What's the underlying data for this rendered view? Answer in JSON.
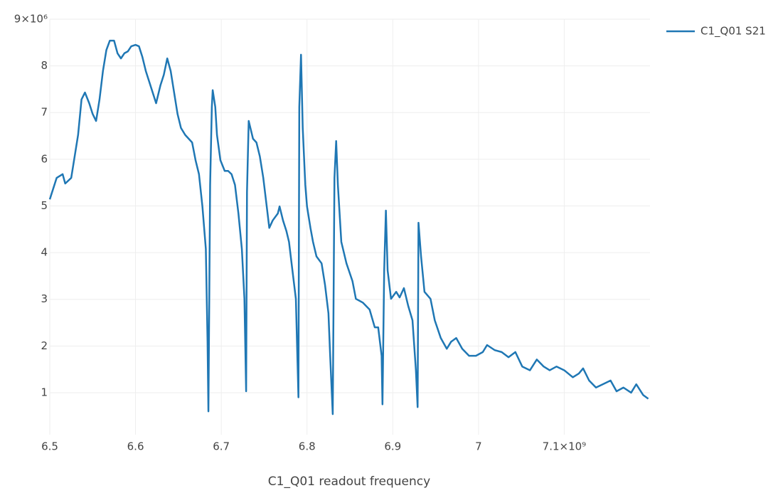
{
  "chart_data": {
    "type": "line",
    "x_label": "C1_Q01 readout frequency",
    "x": [
      6500000000.0,
      6504000000.0,
      6508000000.0,
      6515000000.0,
      6518000000.0,
      6525000000.0,
      6527000000.0,
      6533000000.0,
      6537000000.0,
      6541000000.0,
      6546000000.0,
      6550000000.0,
      6554000000.0,
      6558000000.0,
      6562000000.0,
      6566000000.0,
      6570000000.0,
      6575000000.0,
      6579000000.0,
      6583000000.0,
      6587000000.0,
      6591000000.0,
      6595000000.0,
      6600000000.0,
      6604000000.0,
      6608000000.0,
      6612000000.0,
      6616000000.0,
      6620000000.0,
      6624000000.0,
      6629000000.0,
      6633000000.0,
      6637000000.0,
      6641000000.0,
      6645000000.0,
      6649000000.0,
      6653000000.0,
      6658000000.0,
      6662000000.0,
      6666000000.0,
      6670000000.0,
      6674000000.0,
      6678000000.0,
      6682000000.0,
      6684000000.0,
      6685000000.0,
      6687000000.0,
      6689000000.0,
      6690000000.0,
      6693000000.0,
      6695000000.0,
      6699000000.0,
      6704000000.0,
      6708000000.0,
      6712000000.0,
      6716000000.0,
      6720000000.0,
      6724000000.0,
      6727000000.0,
      6729000000.0,
      6730000000.0,
      6732000000.0,
      6737000000.0,
      6741000000.0,
      6745000000.0,
      6749000000.0,
      6753000000.0,
      6756000000.0,
      6760000000.0,
      6766000000.0,
      6768000000.0,
      6772000000.0,
      6776000000.0,
      6779000000.0,
      6782000000.0,
      6787000000.0,
      6790000000.0,
      6791000000.0,
      6793000000.0,
      6795000000.0,
      6798000000.0,
      6800000000.0,
      6804000000.0,
      6807000000.0,
      6811000000.0,
      6817000000.0,
      6821000000.0,
      6825000000.0,
      6827000000.0,
      6830000000.0,
      6832000000.0,
      6834000000.0,
      6836000000.0,
      6840000000.0,
      6846000000.0,
      6853000000.0,
      6857000000.0,
      6865000000.0,
      6873000000.0,
      6879000000.0,
      6883000000.0,
      6887000000.0,
      6888000000.0,
      6890000000.0,
      6892000000.0,
      6894000000.0,
      6898000000.0,
      6904000000.0,
      6908000000.0,
      6913000000.0,
      6918000000.0,
      6923000000.0,
      6927000000.0,
      6929000000.0,
      6930000000.0,
      6933000000.0,
      6937000000.0,
      6944000000.0,
      6949000000.0,
      6956000000.0,
      6963000000.0,
      6968000000.0,
      6974000000.0,
      6981000000.0,
      6989000000.0,
      6997000000.0,
      7005000000.0,
      7010000000.0,
      7019000000.0,
      7027000000.0,
      7035000000.0,
      7043000000.0,
      7051000000.0,
      7060000000.0,
      7068000000.0,
      7076000000.0,
      7083000000.0,
      7091000000.0,
      7100000000.0,
      7110000000.0,
      7117000000.0,
      7122000000.0,
      7129000000.0,
      7137000000.0,
      7145000000.0,
      7154000000.0,
      7161000000.0,
      7169000000.0,
      7178000000.0,
      7184000000.0,
      7192000000.0,
      7198000000.0
    ],
    "series": [
      {
        "name": "C1_Q01 S21",
        "color": "#1f77b4",
        "values": [
          5140000.0,
          5370000.0,
          5600000.0,
          5680000.0,
          5480000.0,
          5600000.0,
          5830000.0,
          6520000.0,
          7280000.0,
          7430000.0,
          7200000.0,
          6970000.0,
          6820000.0,
          7280000.0,
          7890000.0,
          8340000.0,
          8540000.0,
          8540000.0,
          8270000.0,
          8160000.0,
          8270000.0,
          8310000.0,
          8420000.0,
          8450000.0,
          8420000.0,
          8190000.0,
          7890000.0,
          7660000.0,
          7430000.0,
          7200000.0,
          7580000.0,
          7810000.0,
          8160000.0,
          7890000.0,
          7430000.0,
          6970000.0,
          6670000.0,
          6520000.0,
          6440000.0,
          6360000.0,
          5980000.0,
          5680000.0,
          4990000.0,
          4080000.0,
          2090000.0,
          600000.0,
          5450000.0,
          7120000.0,
          7480000.0,
          7120000.0,
          6520000.0,
          5980000.0,
          5750000.0,
          5750000.0,
          5680000.0,
          5450000.0,
          4840000.0,
          4080000.0,
          3010000.0,
          1030000.0,
          5300000.0,
          6820000.0,
          6440000.0,
          6360000.0,
          6060000.0,
          5600000.0,
          4990000.0,
          4530000.0,
          4690000.0,
          4840000.0,
          4990000.0,
          4690000.0,
          4460000.0,
          4230000.0,
          3770000.0,
          3010000.0,
          900000.0,
          7120000.0,
          8240000.0,
          6670000.0,
          5450000.0,
          4990000.0,
          4530000.0,
          4230000.0,
          3920000.0,
          3770000.0,
          3310000.0,
          2700000.0,
          1790000.0,
          540000.0,
          5600000.0,
          6390000.0,
          5450000.0,
          4230000.0,
          3770000.0,
          3390000.0,
          3010000.0,
          2930000.0,
          2780000.0,
          2400000.0,
          2400000.0,
          1790000.0,
          750000.0,
          3620000.0,
          4900000.0,
          3620000.0,
          3010000.0,
          3160000.0,
          3040000.0,
          3240000.0,
          2860000.0,
          2550000.0,
          1480000.0,
          690000.0,
          4640000.0,
          3920000.0,
          3160000.0,
          3010000.0,
          2550000.0,
          2170000.0,
          1940000.0,
          2090000.0,
          2170000.0,
          1940000.0,
          1790000.0,
          1790000.0,
          1870000.0,
          2020000.0,
          1910000.0,
          1870000.0,
          1760000.0,
          1870000.0,
          1560000.0,
          1480000.0,
          1710000.0,
          1560000.0,
          1480000.0,
          1560000.0,
          1480000.0,
          1330000.0,
          1410000.0,
          1520000.0,
          1260000.0,
          1110000.0,
          1180000.0,
          1260000.0,
          1030000.0,
          1110000.0,
          1000000.0,
          1180000.0,
          950000.0,
          870000.0
        ]
      }
    ],
    "xlim": [
      6500000000.0,
      7200000000.0
    ],
    "xticks": [
      {
        "value": 6500000000.0,
        "label": "6.5"
      },
      {
        "value": 6600000000.0,
        "label": "6.6"
      },
      {
        "value": 6700000000.0,
        "label": "6.7"
      },
      {
        "value": 6800000000.0,
        "label": "6.8"
      },
      {
        "value": 6900000000.0,
        "label": "6.9"
      },
      {
        "value": 7000000000.0,
        "label": "7"
      },
      {
        "value": 7100000000.0,
        "label": "7.1×10⁹"
      }
    ],
    "ylim": [
      100000.0,
      9000000.0
    ],
    "yticks": [
      {
        "value": 1000000.0,
        "label": "1"
      },
      {
        "value": 2000000.0,
        "label": "2"
      },
      {
        "value": 3000000.0,
        "label": "3"
      },
      {
        "value": 4000000.0,
        "label": "4"
      },
      {
        "value": 5000000.0,
        "label": "5"
      },
      {
        "value": 6000000.0,
        "label": "6"
      },
      {
        "value": 7000000.0,
        "label": "7"
      },
      {
        "value": 8000000.0,
        "label": "8"
      },
      {
        "value": 9000000.0,
        "label": "9×10⁶"
      }
    ],
    "grid": true,
    "legend": "top-right"
  }
}
